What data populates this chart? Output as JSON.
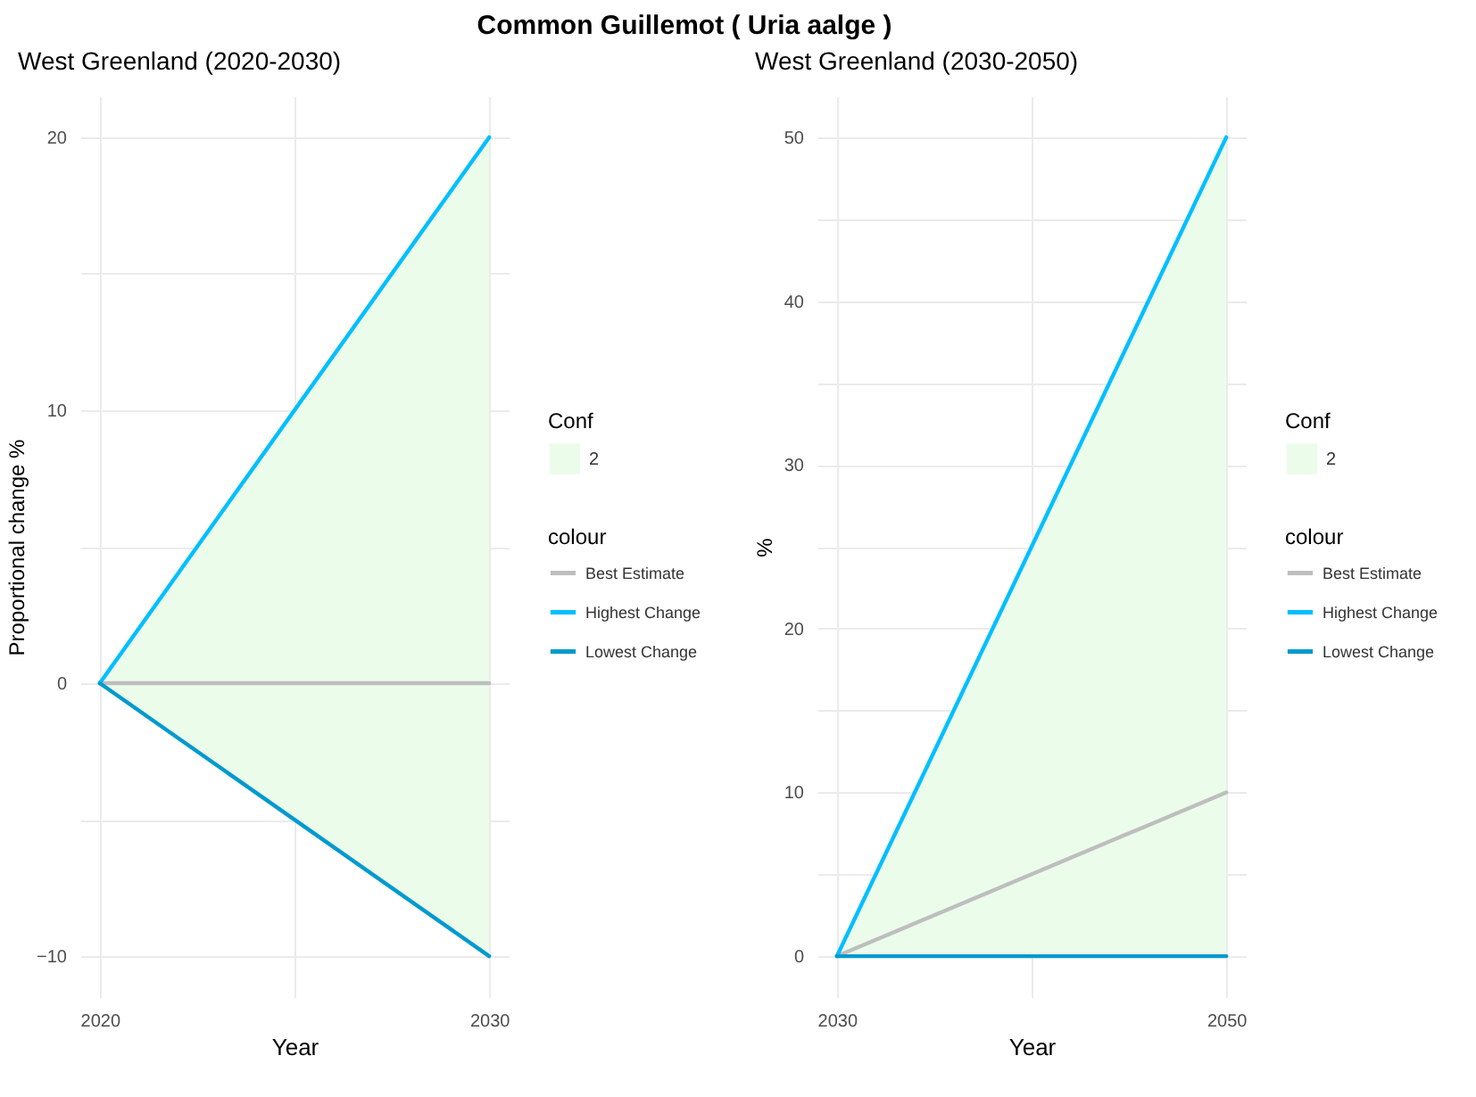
{
  "chart_data": [
    {
      "type": "line",
      "title": "Common Guillemot ( Uria aalge )",
      "subtitle": "West Greenland (2020-2030)",
      "xlabel": "Year",
      "ylabel": "Proportional change %",
      "legend_title": "colour",
      "annotations": [
        "Conf",
        "2"
      ],
      "x": [
        2020,
        2030
      ],
      "xlim": [
        2019.5,
        2030.5
      ],
      "xticks": [
        2020,
        {
          "value": 2025,
          "label": null
        },
        2030
      ],
      "ylim": [
        -11.5,
        21.5
      ],
      "yticks": [
        -10,
        {
          "value": -5,
          "label": null
        },
        0,
        {
          "value": 5,
          "label": null
        },
        10,
        {
          "value": 15,
          "label": null
        },
        20
      ],
      "grid": true,
      "legend": "right",
      "series": [
        {
          "name": "Best Estimate",
          "color": "#bebebe",
          "values": [
            0,
            0
          ],
          "lower": [
            0,
            -10
          ],
          "upper": [
            0,
            20
          ]
        },
        {
          "name": "Highest Change",
          "color": "#00bfff",
          "values": [
            0,
            20
          ]
        },
        {
          "name": "Lowest Change",
          "color": "#009acd",
          "values": [
            0,
            -10
          ]
        }
      ]
    },
    {
      "type": "line",
      "subtitle": "West Greenland (2030-2050)",
      "xlabel": "Year",
      "ylabel": "%",
      "legend_title": "colour",
      "annotations": [
        "Conf",
        "2"
      ],
      "x": [
        2030,
        2050
      ],
      "xlim": [
        2029,
        2051
      ],
      "xticks": [
        2030,
        {
          "value": 2040,
          "label": null
        },
        2050
      ],
      "ylim": [
        -2.5,
        52.5
      ],
      "yticks": [
        0,
        {
          "value": 5,
          "label": null
        },
        10,
        {
          "value": 15,
          "label": null
        },
        20,
        {
          "value": 25,
          "label": null
        },
        30,
        {
          "value": 35,
          "label": null
        },
        40,
        {
          "value": 45,
          "label": null
        },
        50
      ],
      "grid": true,
      "legend": "right",
      "series": [
        {
          "name": "Best Estimate",
          "color": "#bebebe",
          "values": [
            0,
            10
          ],
          "lower": [
            0,
            0
          ],
          "upper": [
            0,
            50
          ]
        },
        {
          "name": "Highest Change",
          "color": "#00bfff",
          "values": [
            0,
            50
          ]
        },
        {
          "name": "Lowest Change",
          "color": "#009acd",
          "values": [
            0,
            0
          ]
        }
      ]
    }
  ]
}
